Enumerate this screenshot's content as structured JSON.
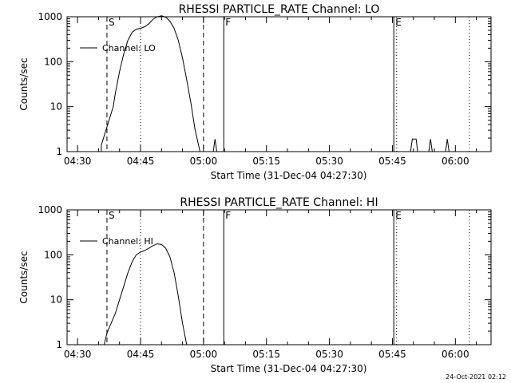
{
  "chart_data": [
    {
      "type": "line",
      "title": "RHESSI PARTICLE_RATE Channel: LO",
      "xlabel": "Start Time (31-Dec-04 04:27:30)",
      "ylabel": "Counts/sec",
      "yscale": "log",
      "ylim": [
        1,
        1000
      ],
      "xlim": [
        "04:27:30",
        "06:08:30"
      ],
      "x_ticks": [
        "04:30",
        "04:45",
        "05:00",
        "05:15",
        "05:30",
        "05:45",
        "06:00"
      ],
      "y_ticks": [
        "1",
        "10",
        "100",
        "1000"
      ],
      "legend": "Channel: LO",
      "legend_position": "top-left",
      "markers": [
        {
          "label": "S",
          "time": "04:37:00",
          "style": "dashed"
        },
        {
          "label": "",
          "time": "04:45:00",
          "style": "dotted"
        },
        {
          "label": "",
          "time": "05:00:00",
          "style": "dashed"
        },
        {
          "label": "F",
          "time": "05:04:50",
          "style": "solid"
        },
        {
          "label": "E",
          "time": "05:45:20",
          "style": "solid"
        },
        {
          "label": "",
          "time": "05:46:00",
          "style": "dotted"
        },
        {
          "label": "",
          "time": "06:03:20",
          "style": "dotted"
        }
      ],
      "series": [
        {
          "segments": [
            [
              [
                "04:35:40",
                1
              ],
              [
                "04:35:40",
                1.4
              ],
              [
                "04:36:30",
                2.5
              ],
              [
                "04:37:30",
                5
              ],
              [
                "04:38:30",
                10
              ],
              [
                "04:39:00",
                20
              ],
              [
                "04:40:00",
                60
              ],
              [
                "04:41:00",
                150
              ],
              [
                "04:42:00",
                300
              ],
              [
                "04:43:00",
                450
              ],
              [
                "04:44:00",
                530
              ],
              [
                "04:45:00",
                550
              ],
              [
                "04:46:00",
                600
              ],
              [
                "04:47:00",
                700
              ],
              [
                "04:48:00",
                880
              ],
              [
                "04:49:00",
                1000
              ],
              [
                "04:50:00",
                1050
              ],
              [
                "04:51:00",
                980
              ],
              [
                "04:52:00",
                800
              ],
              [
                "04:53:00",
                550
              ],
              [
                "04:54:00",
                300
              ],
              [
                "04:55:00",
                120
              ],
              [
                "04:56:00",
                40
              ],
              [
                "04:57:00",
                12
              ],
              [
                "04:58:00",
                3
              ],
              [
                "04:58:40",
                1.6
              ],
              [
                "04:59:10",
                1
              ]
            ],
            [
              [
                "05:02:20",
                1
              ],
              [
                "05:02:45",
                1.9
              ],
              [
                "05:03:10",
                1
              ]
            ],
            [
              [
                "05:49:20",
                1
              ],
              [
                "05:49:45",
                1.9
              ],
              [
                "05:50:40",
                1.9
              ],
              [
                "05:51:00",
                1
              ]
            ],
            [
              [
                "05:53:40",
                1
              ],
              [
                "05:54:05",
                1.9
              ],
              [
                "05:54:30",
                1
              ]
            ],
            [
              [
                "05:57:40",
                1
              ],
              [
                "05:58:05",
                1.9
              ],
              [
                "05:58:30",
                1
              ]
            ]
          ]
        }
      ]
    },
    {
      "type": "line",
      "title": "RHESSI PARTICLE_RATE Channel: HI",
      "xlabel": "Start Time (31-Dec-04 04:27:30)",
      "ylabel": "Counts/sec",
      "yscale": "log",
      "ylim": [
        1,
        1000
      ],
      "xlim": [
        "04:27:30",
        "06:08:30"
      ],
      "x_ticks": [
        "04:30",
        "04:45",
        "05:00",
        "05:15",
        "05:30",
        "05:45",
        "06:00"
      ],
      "y_ticks": [
        "1",
        "10",
        "100",
        "1000"
      ],
      "legend": "Channel: HI",
      "legend_position": "top-left",
      "markers": [
        {
          "label": "S",
          "time": "04:37:00",
          "style": "dashed"
        },
        {
          "label": "",
          "time": "04:45:00",
          "style": "dotted"
        },
        {
          "label": "",
          "time": "05:00:00",
          "style": "dashed"
        },
        {
          "label": "F",
          "time": "05:04:50",
          "style": "solid"
        },
        {
          "label": "E",
          "time": "05:45:20",
          "style": "solid"
        },
        {
          "label": "",
          "time": "05:46:00",
          "style": "dotted"
        },
        {
          "label": "",
          "time": "06:03:20",
          "style": "dotted"
        }
      ],
      "series": [
        {
          "segments": [
            [
              [
                "04:36:20",
                1
              ],
              [
                "04:37:00",
                1.8
              ],
              [
                "04:38:00",
                3
              ],
              [
                "04:39:00",
                5
              ],
              [
                "04:40:00",
                10
              ],
              [
                "04:41:00",
                20
              ],
              [
                "04:42:00",
                40
              ],
              [
                "04:43:00",
                70
              ],
              [
                "04:44:00",
                100
              ],
              [
                "04:45:00",
                115
              ],
              [
                "04:46:00",
                125
              ],
              [
                "04:47:00",
                140
              ],
              [
                "04:48:00",
                160
              ],
              [
                "04:49:00",
                175
              ],
              [
                "04:50:00",
                170
              ],
              [
                "04:51:00",
                140
              ],
              [
                "04:52:00",
                90
              ],
              [
                "04:53:00",
                40
              ],
              [
                "04:54:00",
                12
              ],
              [
                "04:55:00",
                3
              ],
              [
                "04:56:00",
                1
              ]
            ]
          ]
        }
      ]
    }
  ],
  "timestamp": "24-Oct-2021 02:12"
}
